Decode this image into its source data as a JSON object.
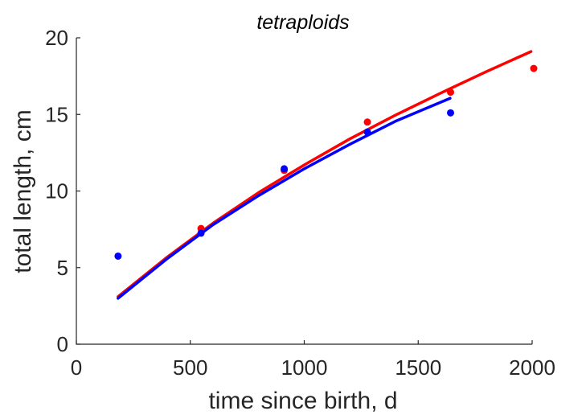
{
  "chart_data": {
    "type": "scatter",
    "title": "tetraploids",
    "xlabel": "time since birth, d",
    "ylabel": "total length, cm",
    "xlim": [
      0,
      2000
    ],
    "ylim": [
      0,
      20
    ],
    "x_ticks": [
      0,
      500,
      1000,
      1500,
      2000
    ],
    "y_ticks": [
      0,
      5,
      10,
      15,
      20
    ],
    "grid": false,
    "legend": "none",
    "series": [
      {
        "color": "#ff0000",
        "points": {
          "x": [
            547,
            912,
            1277,
            1642,
            2007
          ],
          "y": [
            7.55,
            11.35,
            14.5,
            16.45,
            18.0
          ]
        },
        "curve": {
          "x": [
            183,
            400,
            600,
            800,
            1000,
            1200,
            1400,
            1600,
            1800,
            1995
          ],
          "y": [
            3.1,
            5.7,
            7.9,
            9.9,
            11.7,
            13.4,
            14.95,
            16.4,
            17.8,
            19.1
          ]
        }
      },
      {
        "color": "#0000ff",
        "points": {
          "x": [
            183,
            547,
            912,
            1277,
            1642
          ],
          "y": [
            5.75,
            7.25,
            11.45,
            13.85,
            15.1
          ]
        },
        "curve": {
          "x": [
            183,
            400,
            600,
            800,
            1000,
            1200,
            1400,
            1640
          ],
          "y": [
            3.0,
            5.6,
            7.8,
            9.7,
            11.45,
            13.05,
            14.55,
            16.05
          ]
        }
      }
    ]
  }
}
